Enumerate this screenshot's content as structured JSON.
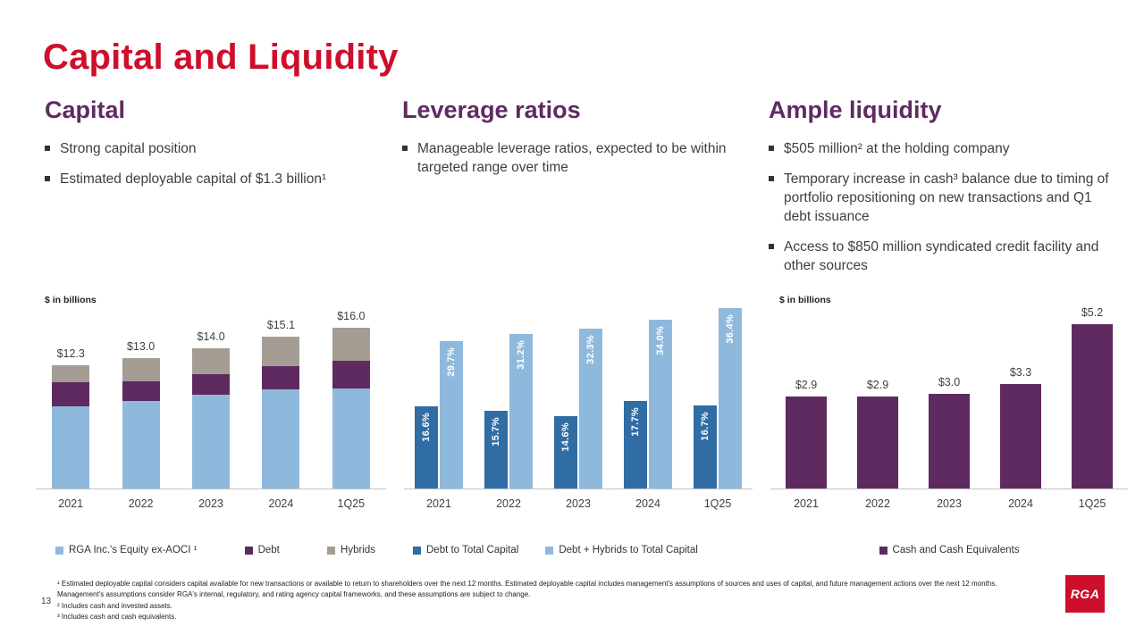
{
  "title": "Capital and Liquidity",
  "sections": [
    {
      "heading": "Capital",
      "bullets": [
        "Strong capital position",
        "Estimated deployable capital of $1.3 billion¹"
      ]
    },
    {
      "heading": "Leverage ratios",
      "bullets": [
        "Manageable leverage ratios, expected to be within targeted range over time"
      ]
    },
    {
      "heading": "Ample liquidity",
      "bullets": [
        "$505 million² at the holding company",
        "Temporary increase in cash³ balance due to timing of portfolio repositioning on new transactions and Q1 debt issuance",
        "Access to $850 million syndicated credit facility and other sources"
      ]
    }
  ],
  "chart_data": [
    {
      "id": "capital",
      "type": "bar-stacked",
      "unit_label": "$ in billions",
      "categories": [
        "2021",
        "2022",
        "2023",
        "2024",
        "1Q25"
      ],
      "series": [
        {
          "name": "RGA Inc.'s Equity ex-AOCI ¹",
          "color": "#8FB9DC",
          "values": [
            8.2,
            8.7,
            9.3,
            9.9,
            10.0
          ]
        },
        {
          "name": "Debt",
          "color": "#5E2A60",
          "values": [
            2.4,
            2.0,
            2.1,
            2.3,
            2.7
          ]
        },
        {
          "name": "Hybrids",
          "color": "#A59C94",
          "values": [
            1.7,
            2.3,
            2.6,
            2.9,
            3.3
          ]
        }
      ],
      "total_labels": [
        "$12.3",
        "$13.0",
        "$14.0",
        "$15.1",
        "$16.0"
      ],
      "totals": [
        12.3,
        13.0,
        14.0,
        15.1,
        16.0
      ],
      "ylim": [
        0,
        16.0
      ],
      "grid": false,
      "legend_position": "bottom"
    },
    {
      "id": "leverage",
      "type": "bar-grouped",
      "unit_label": "",
      "categories": [
        "2021",
        "2022",
        "2023",
        "2024",
        "1Q25"
      ],
      "series": [
        {
          "name": "Debt to Total Capital",
          "color": "#2F6DA4",
          "values": [
            16.6,
            15.7,
            14.6,
            17.7,
            16.7
          ],
          "labels": [
            "16.6%",
            "15.7%",
            "14.6%",
            "17.7%",
            "16.7%"
          ]
        },
        {
          "name": "Debt + Hybrids to Total Capital",
          "color": "#8FB9DC",
          "values": [
            29.7,
            31.2,
            32.3,
            34.0,
            36.4
          ],
          "labels": [
            "29.7%",
            "31.2%",
            "32.3%",
            "34.0%",
            "36.4%"
          ]
        }
      ],
      "ylim": [
        0,
        36.4
      ],
      "grid": false,
      "legend_position": "bottom"
    },
    {
      "id": "liquidity",
      "type": "bar",
      "unit_label": "$ in billions",
      "categories": [
        "2021",
        "2022",
        "2023",
        "2024",
        "1Q25"
      ],
      "series": [
        {
          "name": "Cash and Cash Equivalents",
          "color": "#5E2A60",
          "values": [
            2.9,
            2.9,
            3.0,
            3.3,
            5.2
          ],
          "labels": [
            "$2.9",
            "$2.9",
            "$3.0",
            "$3.3",
            "$5.2"
          ]
        }
      ],
      "ylim": [
        0,
        5.2
      ],
      "grid": false,
      "legend_position": "bottom"
    }
  ],
  "footnotes": [
    "¹ Estimated deployable capital considers capital available for new transactions or available to return to shareholders over the next 12 months. Estimated deployable capital includes management's assumptions of sources and uses of capital, and future management actions over the next 12 months. Management's assumptions consider RGA's internal, regulatory, and rating agency capital frameworks, and these assumptions are subject to change.",
    "² Includes cash and invested assets.",
    "³ Includes cash and cash equivalents."
  ],
  "page_number": "13",
  "logo_text": "RGA"
}
